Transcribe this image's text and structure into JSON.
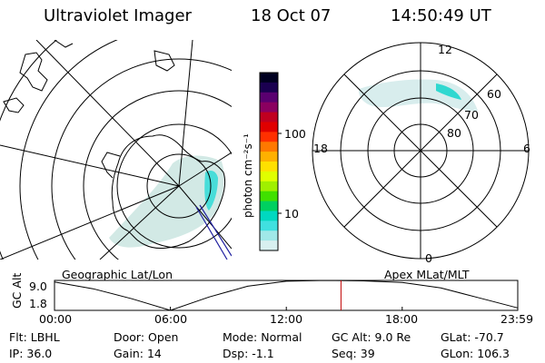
{
  "header": {
    "instrument": "Ultraviolet Imager",
    "date": "18 Oct 07",
    "time": "14:50:49 UT"
  },
  "panels": {
    "left_label": "Geographic Lat/Lon",
    "right_label": "Apex MLat/MLT"
  },
  "colorbar": {
    "unit_label": "photon cm⁻²s⁻¹",
    "ticks": [
      {
        "value": 10,
        "label": "10"
      },
      {
        "value": 100,
        "label": "100"
      }
    ],
    "scale": "log",
    "colors": [
      "#000020",
      "#1a0050",
      "#5a0070",
      "#8b0060",
      "#c00020",
      "#e00000",
      "#ff3000",
      "#ff7800",
      "#ffb000",
      "#ffe000",
      "#e0ff00",
      "#a0f000",
      "#40e000",
      "#00d060",
      "#00d8c0",
      "#40e0e0",
      "#a0e8e8",
      "#d8f0f0"
    ]
  },
  "polar_grid": {
    "lat_labels": [
      "60",
      "70",
      "80"
    ],
    "mlt_labels": {
      "top": "12",
      "left": "18",
      "right": "6",
      "bottom": "0"
    }
  },
  "chart_data": {
    "type": "line",
    "title": "GC Alt",
    "ylabel": "GC Alt",
    "yticks": [
      "9.0",
      "1.8"
    ],
    "ylim": [
      1.8,
      9.0
    ],
    "xticks": [
      "00:00",
      "06:00",
      "12:00",
      "18:00",
      "23:59"
    ],
    "x": [
      "00:00",
      "02:00",
      "04:00",
      "06:00",
      "08:00",
      "10:00",
      "12:00",
      "14:00",
      "16:00",
      "18:00",
      "20:00",
      "22:00",
      "23:59"
    ],
    "series": [
      {
        "values": [
          8.6,
          7.0,
          4.6,
          1.8,
          5.0,
          7.6,
          8.8,
          9.0,
          8.9,
          8.5,
          7.2,
          4.8,
          2.4
        ]
      }
    ],
    "marker_time": "14:50",
    "marker_color": "#c00000"
  },
  "footer": {
    "items": [
      {
        "label": "Flt:",
        "value": "LBHL"
      },
      {
        "label": "Door:",
        "value": "Open"
      },
      {
        "label": "Mode:",
        "value": "Normal"
      },
      {
        "label": "GC Alt:",
        "value": "9.0 Re"
      },
      {
        "label": "GLat:",
        "value": "-70.7"
      },
      {
        "label": "IP:",
        "value": "36.0"
      },
      {
        "label": "Gain:",
        "value": "14"
      },
      {
        "label": "Dsp:",
        "value": "-1.1"
      },
      {
        "label": "Seq:",
        "value": "39"
      },
      {
        "label": "GLon:",
        "value": "106.3"
      }
    ]
  }
}
